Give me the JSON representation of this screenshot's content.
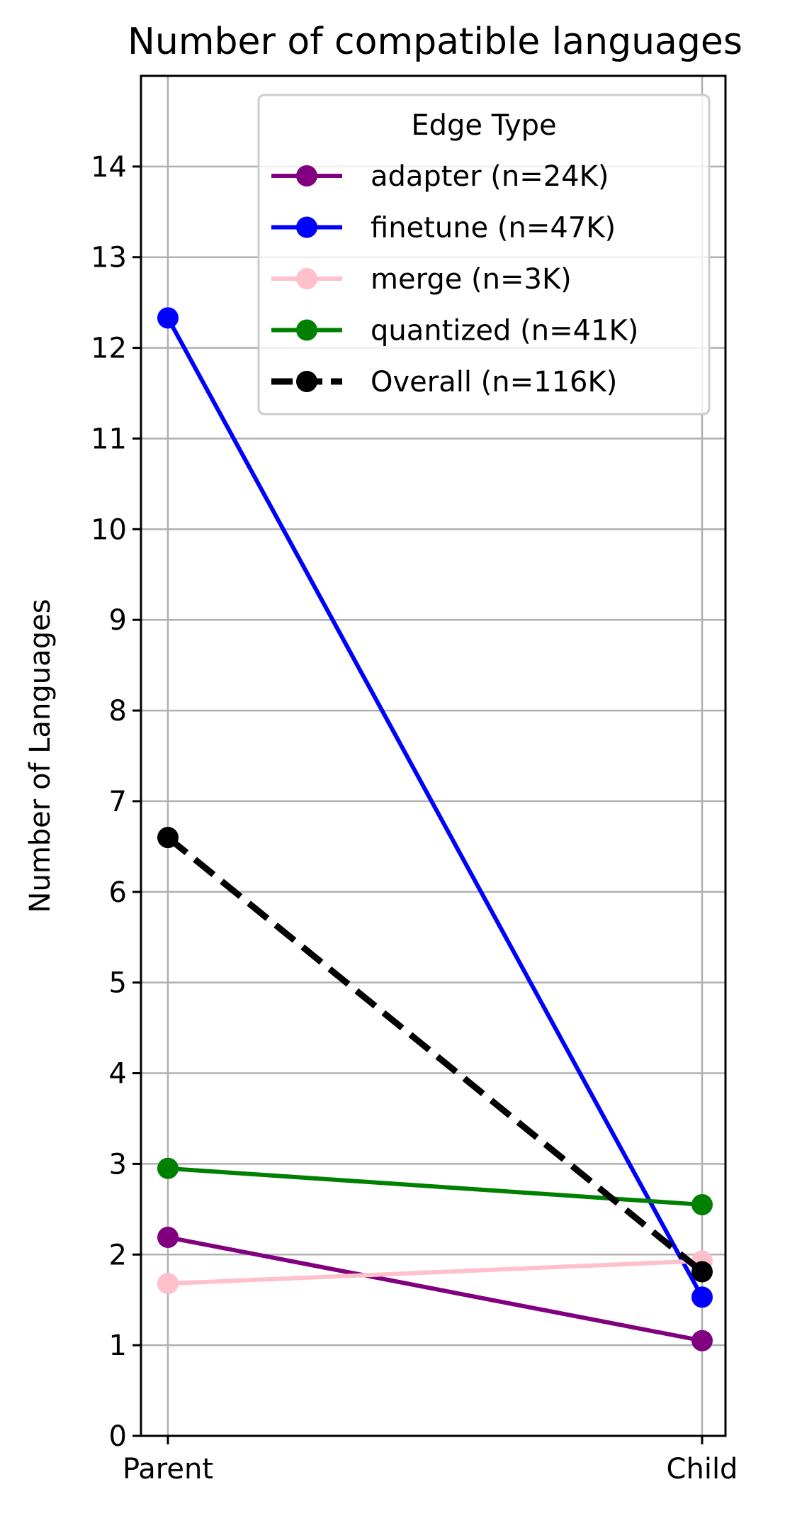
{
  "chart_data": {
    "type": "line",
    "title": "Number of compatible languages",
    "xlabel": "",
    "ylabel": "Number of Languages",
    "categories": [
      "Parent",
      "Child"
    ],
    "ylim": [
      0,
      15
    ],
    "yticks": [
      0,
      1,
      2,
      3,
      4,
      5,
      6,
      7,
      8,
      9,
      10,
      11,
      12,
      13,
      14
    ],
    "grid": true,
    "legend": {
      "title": "Edge Type",
      "placement": "top-right"
    },
    "series": [
      {
        "name": "adapter (n=24K)",
        "values": [
          2.19,
          1.05
        ],
        "color": "#800080",
        "dashed": false
      },
      {
        "name": "finetune (n=47K)",
        "values": [
          12.33,
          1.53
        ],
        "color": "#0000ff",
        "dashed": false
      },
      {
        "name": "merge (n=3K)",
        "values": [
          1.68,
          1.93
        ],
        "color": "#ffc0cb",
        "dashed": false
      },
      {
        "name": "quantized (n=41K)",
        "values": [
          2.95,
          2.55
        ],
        "color": "#008000",
        "dashed": false
      },
      {
        "name": "Overall (n=116K)",
        "values": [
          6.6,
          1.81
        ],
        "color": "#000000",
        "dashed": true
      }
    ]
  }
}
